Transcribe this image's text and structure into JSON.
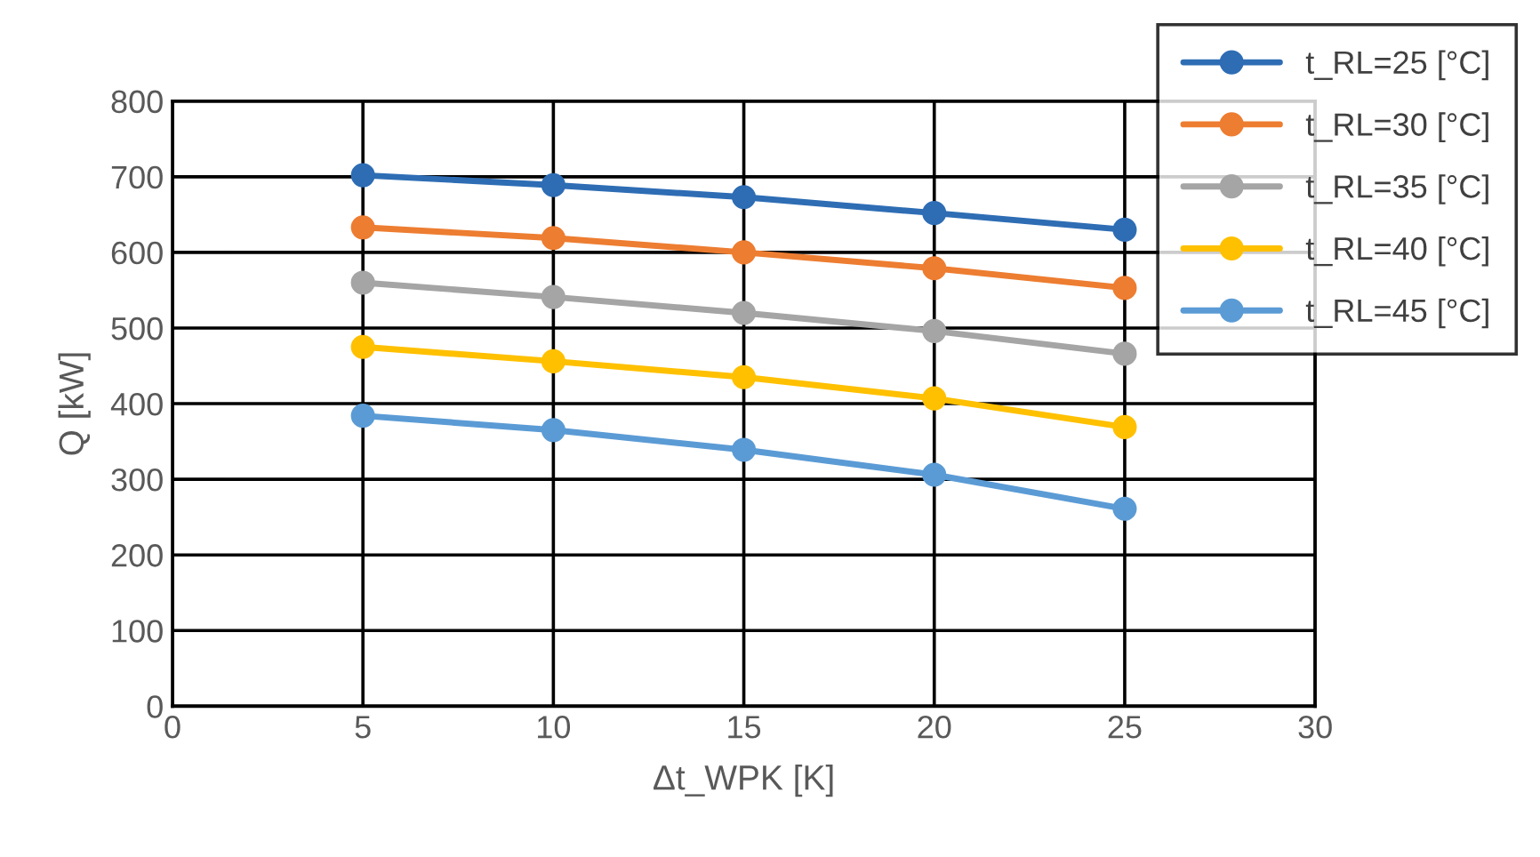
{
  "chart_data": {
    "type": "line",
    "xlabel": "Δt_WPK [K]",
    "ylabel": "Q [kW]",
    "x": [
      5,
      10,
      15,
      20,
      25
    ],
    "series": [
      {
        "name": "t_RL=25 [°C]",
        "color": "#2e6db4",
        "values": [
          702,
          689,
          673,
          652,
          630
        ]
      },
      {
        "name": "t_RL=30 [°C]",
        "color": "#ed7d31",
        "values": [
          633,
          619,
          600,
          579,
          553
        ]
      },
      {
        "name": "t_RL=35 [°C]",
        "color": "#a5a5a5",
        "values": [
          560,
          541,
          520,
          496,
          466
        ]
      },
      {
        "name": "t_RL=40 [°C]",
        "color": "#ffc000",
        "values": [
          475,
          456,
          435,
          407,
          369
        ]
      },
      {
        "name": "t_RL=45 [°C]",
        "color": "#5b9bd5",
        "values": [
          384,
          365,
          339,
          306,
          261
        ]
      }
    ],
    "xlim": [
      0,
      30
    ],
    "xticks": [
      0,
      5,
      10,
      15,
      20,
      25,
      30
    ],
    "ylim": [
      0,
      800
    ],
    "yticks": [
      0,
      100,
      200,
      300,
      400,
      500,
      600,
      700,
      800
    ],
    "grid": true,
    "legend": "top right",
    "marker": "circle",
    "line_style": "solid"
  }
}
